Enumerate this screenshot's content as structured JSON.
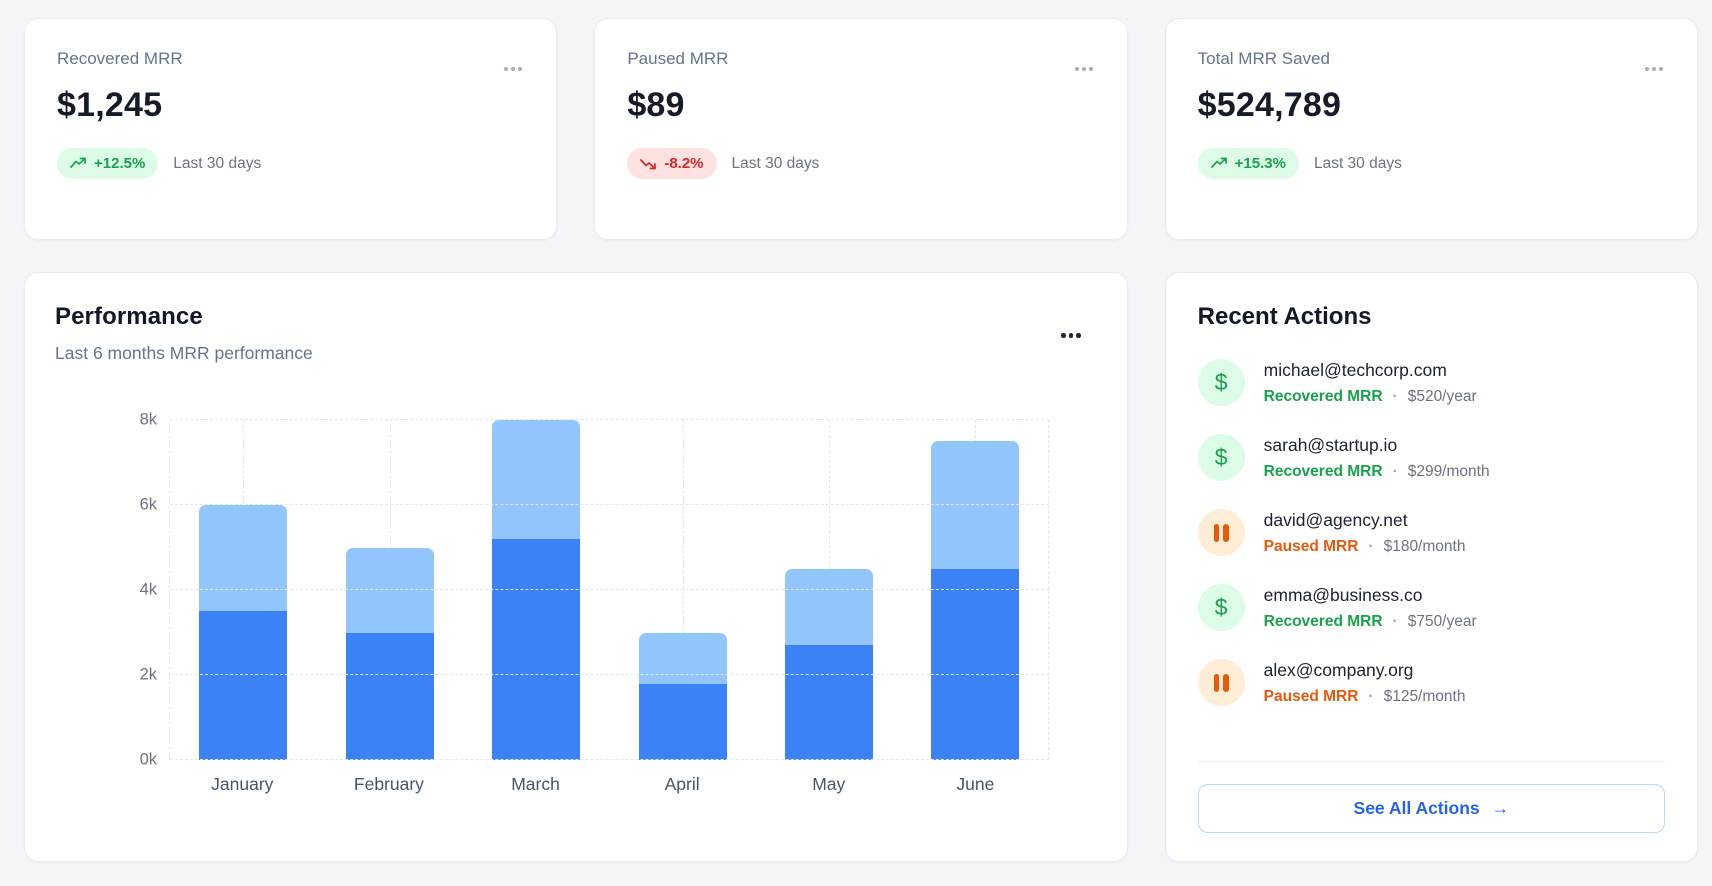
{
  "stat_cards": [
    {
      "title": "Recovered MRR",
      "value": "$1,245",
      "change": "+12.5%",
      "trend": "up",
      "period": "Last 30 days"
    },
    {
      "title": "Paused MRR",
      "value": "$89",
      "change": "-8.2%",
      "trend": "down",
      "period": "Last 30 days"
    },
    {
      "title": "Total MRR Saved",
      "value": "$524,789",
      "change": "+15.3%",
      "trend": "up",
      "period": "Last 30 days"
    }
  ],
  "performance": {
    "title": "Performance",
    "subtitle": "Last 6 months MRR performance"
  },
  "chart_data": {
    "type": "bar",
    "stacked": true,
    "categories": [
      "January",
      "February",
      "March",
      "April",
      "May",
      "June"
    ],
    "series": [
      {
        "name": "dark-blue-segment",
        "color": "#3b82f6",
        "values": [
          3500,
          3000,
          5200,
          1800,
          2700,
          4500
        ]
      },
      {
        "name": "light-blue-segment",
        "color": "#93c5fd",
        "values": [
          2500,
          2000,
          2800,
          1200,
          1800,
          3000
        ]
      }
    ],
    "totals": [
      6000,
      5000,
      8000,
      3000,
      4500,
      7500
    ],
    "title": "Performance",
    "subtitle": "Last 6 months MRR performance",
    "xlabel": "",
    "ylabel": "",
    "ylim": [
      0,
      8000
    ],
    "yticks": [
      "0k",
      "2k",
      "4k",
      "6k",
      "8k"
    ],
    "grid": "dashed",
    "legend": "none"
  },
  "recent_actions": {
    "title": "Recent Actions",
    "separator": "·",
    "items": [
      {
        "email": "michael@techcorp.com",
        "action": "Recovered MRR",
        "amount": "$520/year",
        "type": "recovered"
      },
      {
        "email": "sarah@startup.io",
        "action": "Recovered MRR",
        "amount": "$299/month",
        "type": "recovered"
      },
      {
        "email": "david@agency.net",
        "action": "Paused MRR",
        "amount": "$180/month",
        "type": "paused"
      },
      {
        "email": "emma@business.co",
        "action": "Recovered MRR",
        "amount": "$750/year",
        "type": "recovered"
      },
      {
        "email": "alex@company.org",
        "action": "Paused MRR",
        "amount": "$125/month",
        "type": "paused"
      }
    ],
    "see_all_label": "See All Actions"
  },
  "icons": {
    "dollar": "$",
    "arrow_right": "→"
  },
  "colors": {
    "page_bg": "#f3f5f9",
    "accent_blue": "#2563eb",
    "bar_dark": "#3b82f6",
    "bar_light": "#93c5fd",
    "positive_green": "#16a34a",
    "positive_bg": "#dcfce7",
    "negative_red": "#dc2626",
    "negative_bg": "#fee2e2",
    "paused_orange": "#ea580c",
    "paused_bg": "#ffedd5"
  }
}
